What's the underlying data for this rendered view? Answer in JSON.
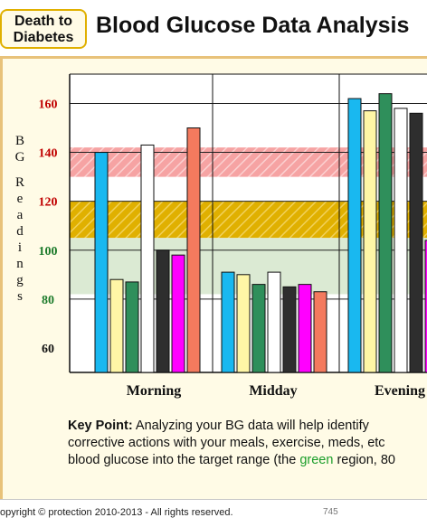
{
  "header": {
    "logo_line1": "Death to",
    "logo_line2": "Diabetes",
    "title": "Blood Glucose Data Analysis"
  },
  "chart_data": {
    "type": "bar",
    "ylabel": "BG Readings",
    "ytick_labels": [
      {
        "value": 160,
        "label": "160",
        "color": "#c00000"
      },
      {
        "value": 140,
        "label": "140",
        "color": "#c00000"
      },
      {
        "value": 120,
        "label": "120",
        "color": "#c00000"
      },
      {
        "value": 100,
        "label": "100",
        "color": "#1b7a2a"
      },
      {
        "value": 80,
        "label": "80",
        "color": "#1b7a2a"
      },
      {
        "value": 60,
        "label": "60",
        "color": "#111111"
      }
    ],
    "ylim": [
      50,
      172
    ],
    "gridlines": [
      160,
      140,
      120,
      100,
      80
    ],
    "bands": [
      {
        "from": 130,
        "to": 142,
        "fill": "#f6a3a3",
        "hatch": true
      },
      {
        "from": 105,
        "to": 120,
        "fill": "#e0b000",
        "hatch": true
      },
      {
        "from": 82,
        "to": 105,
        "fill": "#dbead3",
        "hatch": false
      }
    ],
    "categories": [
      "Morning",
      "Midday",
      "Evening"
    ],
    "series": [
      {
        "color": "#19b8f0",
        "values": [
          140,
          91,
          162
        ]
      },
      {
        "color": "#fff6a6",
        "values": [
          88,
          90,
          157
        ]
      },
      {
        "color": "#2f8f5b",
        "values": [
          87,
          86,
          164
        ]
      },
      {
        "color": "#ffffff",
        "values": [
          143,
          91,
          158
        ]
      },
      {
        "color": "#2e2e2e",
        "values": [
          100,
          85,
          156
        ]
      },
      {
        "color": "#ff00ff",
        "values": [
          98,
          86,
          104
        ]
      },
      {
        "color": "#f47a5e",
        "values": [
          150,
          83,
          null
        ]
      }
    ]
  },
  "keypoint": {
    "label": "Key Point:",
    "line1": " Analyzing your BG data will help identify",
    "line2": "corrective actions with your meals, exercise, meds, etc",
    "line3_pre": "blood glucose into the target range (the ",
    "line3_green": "green",
    "line3_post": " region, 80"
  },
  "footer": {
    "copyright": "opyright © protection 2010-2013 - All rights reserved.",
    "page": "745"
  }
}
